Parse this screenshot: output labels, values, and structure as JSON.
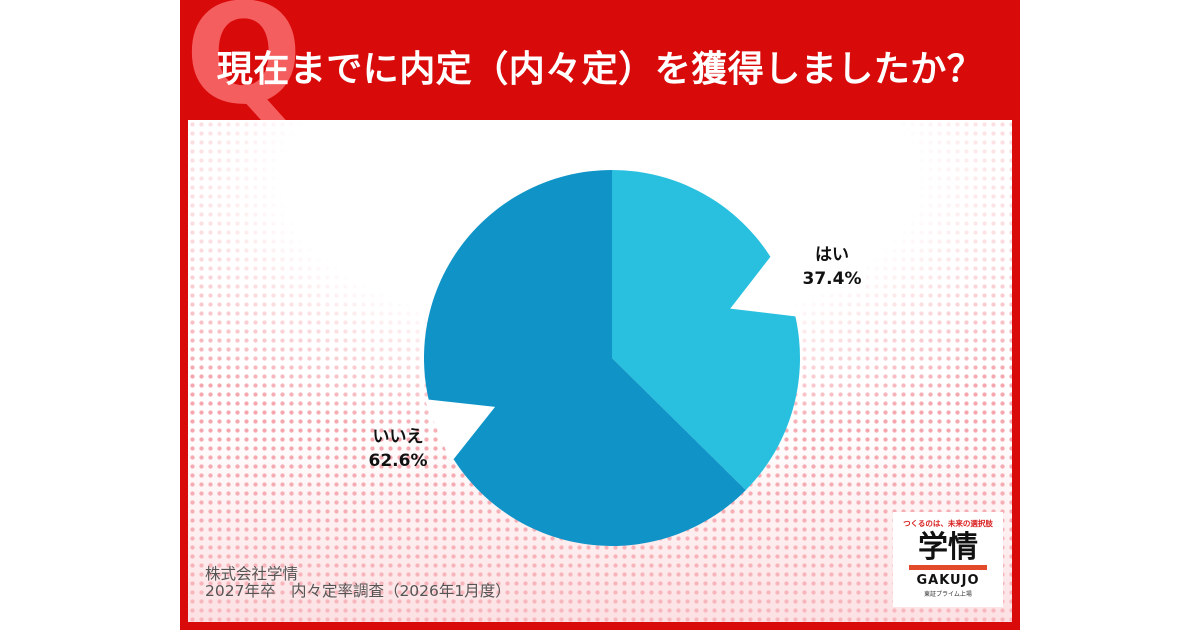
{
  "question_mark": "Q",
  "title": "現在までに内定（内々定）を獲得しましたか？",
  "chart_data": {
    "type": "pie",
    "title": "現在までに内定（内々定）を獲得しましたか？",
    "slices": [
      {
        "label": "はい",
        "value": 37.4,
        "value_label": "37.4%",
        "color": "#29c0df"
      },
      {
        "label": "いいえ",
        "value": 62.6,
        "value_label": "62.6%",
        "color": "#1094c8"
      }
    ]
  },
  "footer": {
    "line1": "株式会社学情",
    "line2": "2027年卒　内々定率調査（2026年1月度）"
  },
  "logo": {
    "tagline": "つくるのは、未来の選択肢",
    "name_jp": "学情",
    "name_en": "GAKUJO",
    "sub": "東証プライム上場"
  },
  "colors": {
    "frame": "#d90a0a",
    "yes": "#29c0df",
    "no": "#1094c8"
  }
}
